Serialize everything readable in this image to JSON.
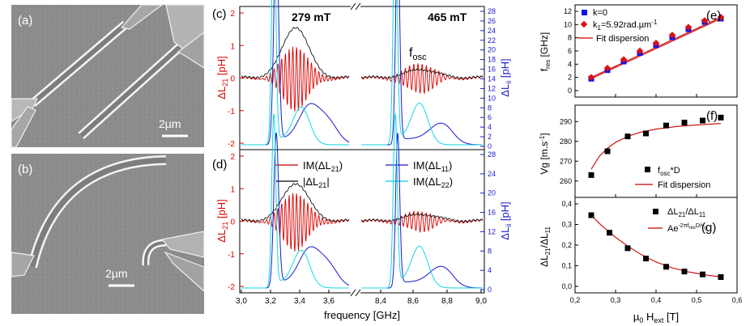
{
  "sem": {
    "a": {
      "label": "(a)",
      "scale": "2µm"
    },
    "b": {
      "label": "(b)",
      "scale": "2µm"
    }
  },
  "spectra": {
    "c": {
      "label": "(c)",
      "field_low": "279 mT",
      "field_high": "465 mT",
      "fosc": "f",
      "fosc_sub": "osc"
    },
    "d": {
      "label": "(d)"
    },
    "left_axis": {
      "main": "ΔL",
      "sub": "21",
      "unit": " [pH]",
      "ticks": [
        "2",
        "1",
        "0",
        "-1",
        "-2"
      ]
    },
    "right_axis": {
      "main": "ΔL",
      "sub": "ii",
      "unit": " [pH]",
      "ticks_c": [
        "28",
        "26",
        "24",
        "22",
        "20",
        "18",
        "16",
        "14",
        "12",
        "10",
        "8",
        "6",
        "4",
        "2",
        "0"
      ],
      "ticks_d": [
        "28",
        "24",
        "20",
        "16",
        "12",
        "8",
        "4",
        "0"
      ]
    },
    "xlabel": "frequency [GHz]",
    "xticks": [
      "3,0",
      "3,2",
      "3,4",
      "3,6",
      "8,4",
      "8,6",
      "8,8",
      "9,0"
    ],
    "legend": [
      {
        "pre": "IM(ΔL",
        "sub": "21",
        "post": ")",
        "color": "#c00000"
      },
      {
        "pre": "|ΔL",
        "sub": "21",
        "post": "|",
        "color": "#000000"
      },
      {
        "pre": "IM(ΔL",
        "sub": "11",
        "post": ")",
        "color": "#1a1acc"
      },
      {
        "pre": "IM(ΔL",
        "sub": "22",
        "post": ")",
        "color": "#00d0e0"
      }
    ],
    "colors": {
      "red": "#dd0000",
      "black": "#111111",
      "blue": "#1a1acc",
      "cyan": "#11d6e6"
    }
  },
  "chart_data": [
    {
      "type": "scatter",
      "panel": "(e)",
      "title": "",
      "ylabel": "f",
      "ylabel_sub": "res",
      "ylabel_unit": " [GHz]",
      "ylim": [
        0,
        12
      ],
      "yticks": [
        "0",
        "2",
        "4",
        "6",
        "8",
        "10",
        "12"
      ],
      "xlim": [
        0.2,
        0.6
      ],
      "series": [
        {
          "name": "k=0",
          "color": "#1010ee",
          "marker": "square",
          "x": [
            0.24,
            0.28,
            0.32,
            0.36,
            0.4,
            0.44,
            0.48,
            0.52,
            0.56
          ],
          "y": [
            1.8,
            3.1,
            4.4,
            5.7,
            6.9,
            8.1,
            9.3,
            10.4,
            10.9
          ]
        },
        {
          "name": "k",
          "name_sub": "1",
          "name_post": "=5.92rad.µm",
          "name_sup": "-1",
          "color": "#dd1010",
          "marker": "diamond",
          "x": [
            0.24,
            0.28,
            0.32,
            0.36,
            0.4,
            0.44,
            0.48,
            0.52,
            0.56
          ],
          "y": [
            2.0,
            3.4,
            4.7,
            6.0,
            7.2,
            8.4,
            9.6,
            10.6,
            11.1
          ]
        }
      ],
      "fit": {
        "name": "Fit dispersion",
        "color": "#cc0000",
        "lines": [
          [
            [
              0.24,
              1.8
            ],
            [
              0.56,
              10.9
            ]
          ],
          [
            [
              0.24,
              2.0
            ],
            [
              0.56,
              11.1
            ]
          ]
        ]
      }
    },
    {
      "type": "scatter",
      "panel": "(f)",
      "ylabel": "Vg",
      "ylabel_unit": " [m.s",
      "ylabel_sup": "-1",
      "ylabel_end": "]",
      "ylim": [
        255,
        295
      ],
      "yticks": [
        "260",
        "270",
        "280",
        "290"
      ],
      "xlim": [
        0.2,
        0.6
      ],
      "series": [
        {
          "name": "f",
          "name_sub": "osc",
          "name_post": "*D",
          "color": "#000000",
          "marker": "square",
          "x": [
            0.24,
            0.28,
            0.33,
            0.375,
            0.425,
            0.47,
            0.515,
            0.56
          ],
          "y": [
            263,
            275,
            282.5,
            284,
            288,
            289.5,
            290.5,
            292
          ]
        }
      ],
      "fit": {
        "name": "Fit dispersion",
        "color": "#cc0000",
        "x": [
          0.24,
          0.26,
          0.28,
          0.3,
          0.33,
          0.36,
          0.4,
          0.45,
          0.5,
          0.56
        ],
        "y": [
          266,
          272.5,
          276.5,
          279.5,
          282.5,
          284.5,
          286.2,
          287.5,
          288.3,
          289
        ]
      }
    },
    {
      "type": "scatter",
      "panel": "(g)",
      "ylabel": "ΔL",
      "ylabel_sub": "21",
      "ylabel_mid": "/ΔL",
      "ylabel_sub2": "11",
      "ylim": [
        0,
        0.4
      ],
      "yticks": [
        "0,0",
        "0,1",
        "0,2",
        "0,3",
        "0,4"
      ],
      "xticks": [
        "0,2",
        "0,3",
        "0,4",
        "0,5",
        "0,6"
      ],
      "xlim": [
        0.2,
        0.6
      ],
      "xlabel": "µ",
      "xlabel_sub": "0",
      "xlabel_post": " H",
      "xlabel_sub2": "ext",
      "xlabel_unit": " [T]",
      "series": [
        {
          "name": "ΔL",
          "name_sub": "21",
          "name_mid": "/ΔL",
          "name_sub2": "11",
          "color": "#000000",
          "marker": "square",
          "x": [
            0.24,
            0.285,
            0.33,
            0.375,
            0.425,
            0.47,
            0.515,
            0.56
          ],
          "y": [
            0.345,
            0.26,
            0.185,
            0.135,
            0.095,
            0.072,
            0.058,
            0.045
          ]
        }
      ],
      "fit": {
        "name": "Ae",
        "name_sup": "-2πf",
        "name_sup_sub": "res",
        "name_sup_post": "D/v",
        "name_sup_sub2": "g",
        "color": "#cc0000",
        "x": [
          0.24,
          0.26,
          0.28,
          0.3,
          0.33,
          0.36,
          0.4,
          0.44,
          0.48,
          0.52,
          0.56
        ],
        "y": [
          0.345,
          0.305,
          0.27,
          0.238,
          0.195,
          0.158,
          0.118,
          0.09,
          0.07,
          0.056,
          0.046
        ]
      }
    }
  ]
}
